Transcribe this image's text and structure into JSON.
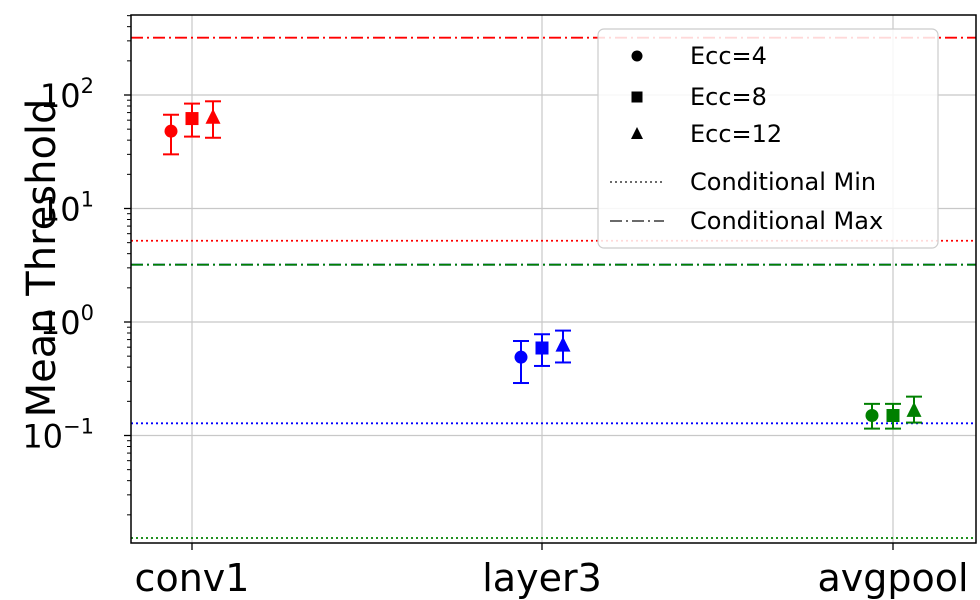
{
  "chart_data": {
    "type": "scatter",
    "title": "",
    "xlabel": "",
    "ylabel": "Mean Threshold",
    "yscale": "log",
    "ylim": [
      0.006,
      500
    ],
    "grid": true,
    "categories": [
      "conv1",
      "layer3",
      "avgpool"
    ],
    "y_tick_labels": [
      {
        "base": "10",
        "exp": "2",
        "value": 100
      },
      {
        "base": "10",
        "exp": "1",
        "value": 10
      },
      {
        "base": "10",
        "exp": "0",
        "value": 1
      },
      {
        "base": "10",
        "exp": "−1",
        "value": 0.1
      }
    ],
    "category_colors": {
      "conv1": "#ff0000",
      "layer3": "#0000ff",
      "avgpool": "#008000"
    },
    "series": [
      {
        "name": "Ecc=4",
        "marker": "circle",
        "values": [
          48,
          0.49,
          0.15
        ],
        "err_low": [
          30,
          0.29,
          0.115
        ],
        "err_high": [
          67,
          0.68,
          0.19
        ]
      },
      {
        "name": "Ecc=8",
        "marker": "square",
        "values": [
          62,
          0.59,
          0.15
        ],
        "err_low": [
          43,
          0.41,
          0.115
        ],
        "err_high": [
          84,
          0.78,
          0.19
        ]
      },
      {
        "name": "Ecc=12",
        "marker": "triangle",
        "values": [
          63,
          0.62,
          0.165
        ],
        "err_low": [
          42,
          0.44,
          0.13
        ],
        "err_high": [
          88,
          0.84,
          0.22
        ]
      }
    ],
    "reference_lines": [
      {
        "category": "conv1",
        "kind": "min",
        "value": 5.2
      },
      {
        "category": "conv1",
        "kind": "max",
        "value": 320
      },
      {
        "category": "layer3",
        "kind": "min",
        "value": 0.128
      },
      {
        "category": "layer3",
        "kind": "max",
        "value": 3.2
      },
      {
        "category": "avgpool",
        "kind": "min",
        "value": 0.0125
      },
      {
        "category": "avgpool",
        "kind": "max",
        "value": 3.2
      }
    ],
    "legend": {
      "position": "top-right",
      "entries": [
        {
          "label": "Ecc=4",
          "symbol": "circle"
        },
        {
          "label": "Ecc=8",
          "symbol": "square"
        },
        {
          "label": "Ecc=12",
          "symbol": "triangle"
        },
        {
          "label": "Conditional Min",
          "symbol": "dotted-line"
        },
        {
          "label": "Conditional Max",
          "symbol": "dashdot-line"
        }
      ]
    }
  }
}
